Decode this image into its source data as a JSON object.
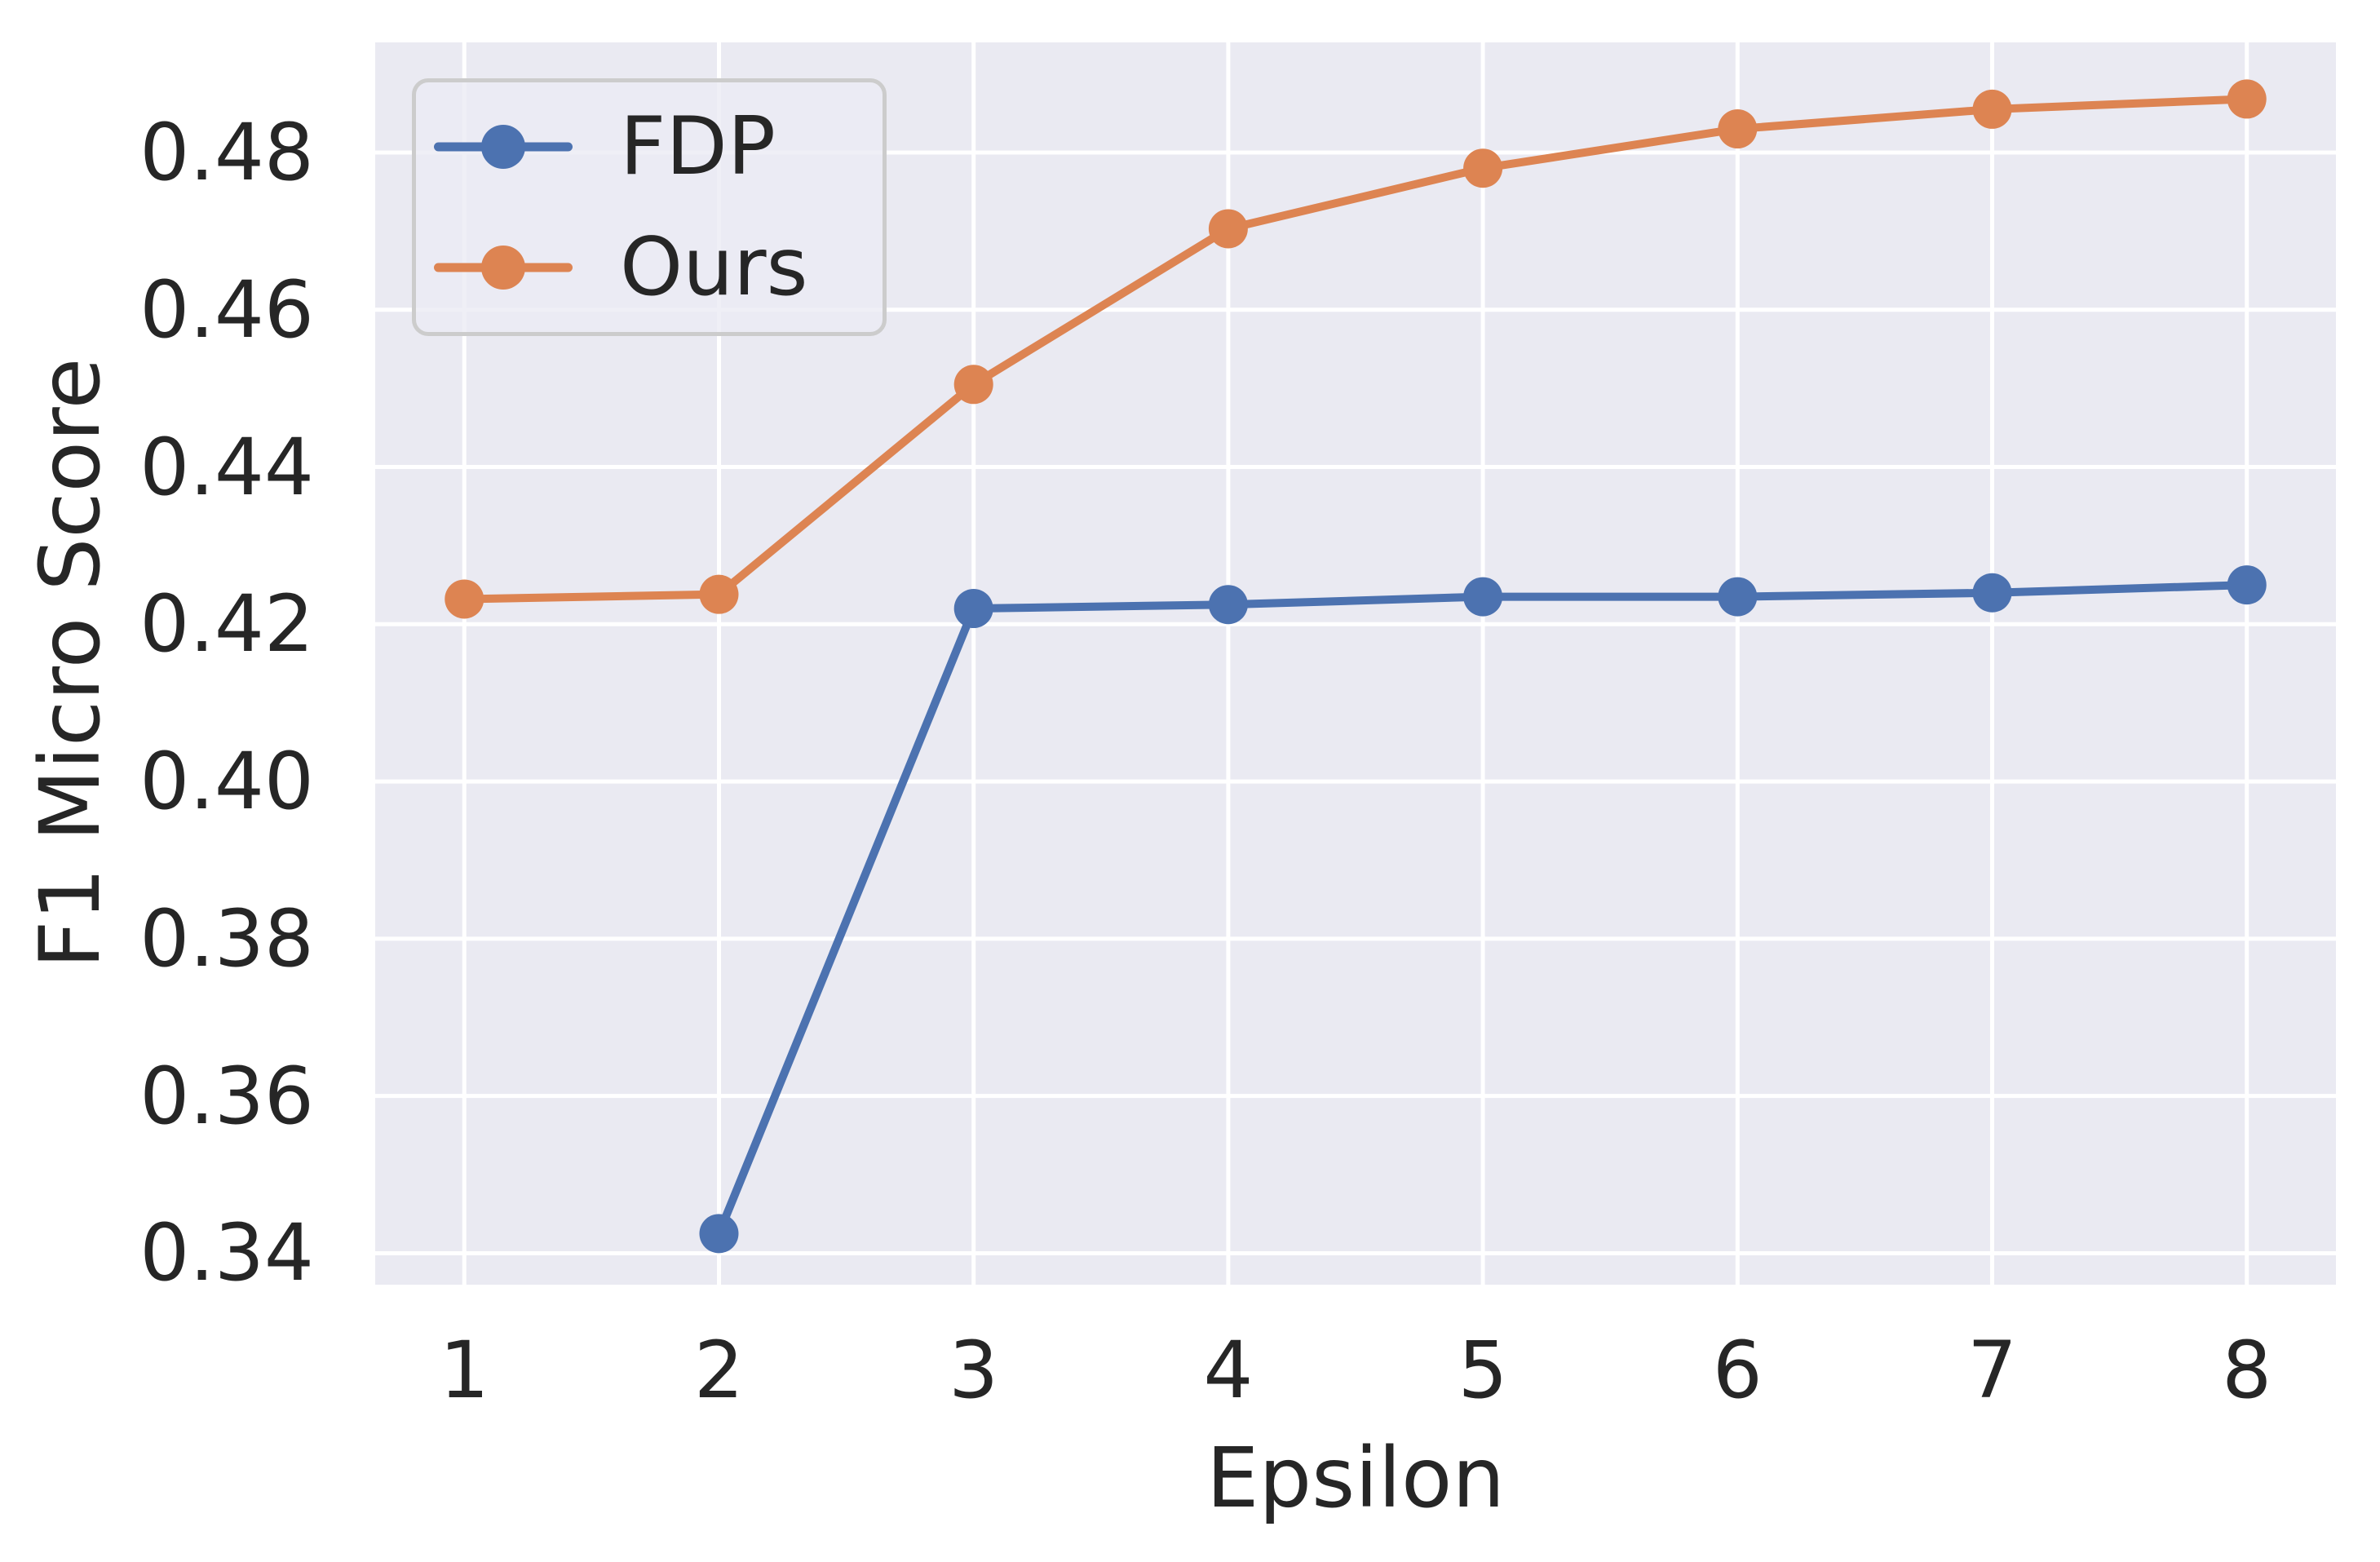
{
  "figure": {
    "title": ""
  },
  "theme": {
    "plot_background": "#EAEAF2",
    "figure_background": "#FFFFFF",
    "grid_color": "#FFFFFF",
    "text_color": "#262626",
    "legend_border_color": "#CCCCCC"
  },
  "chart_data": {
    "type": "line",
    "title": "",
    "xlabel": "Epsilon",
    "ylabel": "F1 Micro Score",
    "x_ticks": [
      1,
      2,
      3,
      4,
      5,
      6,
      7,
      8
    ],
    "x_tick_labels": [
      "1",
      "2",
      "3",
      "4",
      "5",
      "6",
      "7",
      "8"
    ],
    "y_ticks": [
      0.34,
      0.36,
      0.38,
      0.4,
      0.42,
      0.44,
      0.46,
      0.48
    ],
    "y_tick_labels": [
      "0.34",
      "0.36",
      "0.38",
      "0.40",
      "0.42",
      "0.44",
      "0.46",
      "0.48"
    ],
    "xlim": [
      0.65,
      8.35
    ],
    "ylim": [
      0.336,
      0.494
    ],
    "grid": true,
    "legend_position": "upper left",
    "series": [
      {
        "name": "FDP",
        "color": "#4C72B0",
        "x": [
          2,
          3,
          4,
          5,
          6,
          7,
          8
        ],
        "y": [
          0.3425,
          0.422,
          0.4225,
          0.4235,
          0.4235,
          0.424,
          0.425
        ]
      },
      {
        "name": "Ours",
        "color": "#DD8452",
        "x": [
          1,
          2,
          3,
          4,
          5,
          6,
          7,
          8
        ],
        "y": [
          0.4232,
          0.4238,
          0.4505,
          0.4703,
          0.478,
          0.483,
          0.4855,
          0.4868
        ]
      }
    ]
  }
}
